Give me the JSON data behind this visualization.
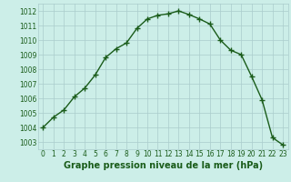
{
  "x": [
    0,
    1,
    2,
    3,
    4,
    5,
    6,
    7,
    8,
    9,
    10,
    11,
    12,
    13,
    14,
    15,
    16,
    17,
    18,
    19,
    20,
    21,
    22,
    23
  ],
  "y": [
    1004.0,
    1004.7,
    1005.2,
    1006.1,
    1006.7,
    1007.6,
    1008.8,
    1009.4,
    1009.8,
    1010.8,
    1011.45,
    1011.7,
    1011.8,
    1012.0,
    1011.75,
    1011.45,
    1011.1,
    1010.0,
    1009.3,
    1009.0,
    1007.5,
    1005.9,
    1003.3,
    1002.8
  ],
  "line_color": "#1a5c1a",
  "marker": "+",
  "marker_size": 4,
  "line_width": 1.0,
  "bg_color": "#cceee8",
  "grid_color": "#aacccc",
  "xlabel": "Graphe pression niveau de la mer (hPa)",
  "xlabel_fontsize": 7,
  "xlabel_color": "#1a5c1a",
  "ylim": [
    1002.5,
    1012.5
  ],
  "yticks": [
    1003,
    1004,
    1005,
    1006,
    1007,
    1008,
    1009,
    1010,
    1011,
    1012
  ],
  "xticks": [
    0,
    1,
    2,
    3,
    4,
    5,
    6,
    7,
    8,
    9,
    10,
    11,
    12,
    13,
    14,
    15,
    16,
    17,
    18,
    19,
    20,
    21,
    22,
    23
  ],
  "tick_fontsize": 5.5,
  "tick_color": "#1a5c1a"
}
